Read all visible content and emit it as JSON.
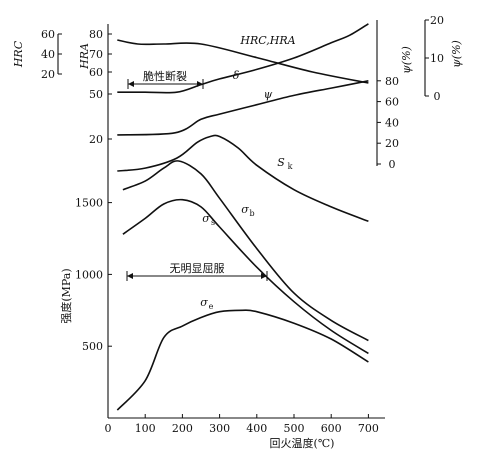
{
  "chart_data": {
    "type": "line",
    "title": "",
    "xlabel": "回火温度(℃)",
    "xlim": [
      0,
      750
    ],
    "x_ticks": [
      "0",
      "100",
      "200",
      "300",
      "400",
      "500",
      "600",
      "700"
    ],
    "ylabel": "强度(MPa)",
    "strength_ticks": [
      "500",
      "1000",
      "1500"
    ],
    "hrc_label": "HRC",
    "hrc_ticks": [
      "60",
      "40",
      "20"
    ],
    "hra_label": "HRA",
    "hra_ticks": [
      "80",
      "70",
      "60",
      "50"
    ],
    "hardness_extra_ticks": [
      "20"
    ],
    "psi_label": "ψ(%)",
    "psi_ticks": [
      "80",
      "60",
      "40",
      "20",
      "0"
    ],
    "delta_label": "ψ(%)",
    "delta_ticks": [
      "20",
      "10",
      "0"
    ],
    "annotations": {
      "brittle_fracture": "脆性断裂",
      "no_yield": "无明显屈服"
    },
    "series": [
      {
        "name": "HRC,HRA",
        "points": [
          [
            25,
            77
          ],
          [
            80,
            75
          ],
          [
            150,
            75
          ],
          [
            250,
            75
          ],
          [
            400,
            68
          ],
          [
            550,
            60
          ],
          [
            700,
            55
          ]
        ]
      },
      {
        "name": "δ",
        "points": [
          [
            25,
            1
          ],
          [
            100,
            1
          ],
          [
            185,
            1
          ],
          [
            250,
            3
          ],
          [
            300,
            4.5
          ],
          [
            400,
            7
          ],
          [
            500,
            10
          ],
          [
            600,
            14
          ],
          [
            650,
            16
          ],
          [
            700,
            19
          ]
        ]
      },
      {
        "name": "ψ",
        "points": [
          [
            25,
            28
          ],
          [
            180,
            30
          ],
          [
            250,
            43
          ],
          [
            300,
            48
          ],
          [
            400,
            57
          ],
          [
            500,
            66
          ],
          [
            600,
            73
          ],
          [
            700,
            80
          ]
        ]
      },
      {
        "name": "Sk",
        "points": [
          [
            25,
            1720
          ],
          [
            100,
            1740
          ],
          [
            185,
            1810
          ],
          [
            240,
            1920
          ],
          [
            275,
            1960
          ],
          [
            300,
            1960
          ],
          [
            350,
            1880
          ],
          [
            400,
            1760
          ],
          [
            500,
            1590
          ],
          [
            600,
            1470
          ],
          [
            700,
            1370
          ]
        ]
      },
      {
        "name": "σb",
        "points": [
          [
            40,
            1590
          ],
          [
            100,
            1650
          ],
          [
            150,
            1740
          ],
          [
            190,
            1790
          ],
          [
            250,
            1700
          ],
          [
            300,
            1530
          ],
          [
            400,
            1180
          ],
          [
            500,
            870
          ],
          [
            600,
            680
          ],
          [
            700,
            540
          ]
        ]
      },
      {
        "name": "σs",
        "points": [
          [
            40,
            1280
          ],
          [
            100,
            1390
          ],
          [
            150,
            1490
          ],
          [
            200,
            1520
          ],
          [
            250,
            1470
          ],
          [
            300,
            1330
          ],
          [
            400,
            1050
          ],
          [
            500,
            810
          ],
          [
            600,
            610
          ],
          [
            700,
            450
          ]
        ]
      },
      {
        "name": "σe",
        "points": [
          [
            25,
            55
          ],
          [
            100,
            260
          ],
          [
            150,
            560
          ],
          [
            200,
            640
          ],
          [
            250,
            700
          ],
          [
            300,
            740
          ],
          [
            360,
            750
          ],
          [
            400,
            740
          ],
          [
            500,
            660
          ],
          [
            600,
            550
          ],
          [
            700,
            390
          ]
        ]
      }
    ],
    "curve_labels": [
      "HRC,HRA",
      "δ",
      "ψ",
      "S",
      "k",
      "σ",
      "b",
      "σ",
      "s",
      "σ",
      "e"
    ]
  }
}
